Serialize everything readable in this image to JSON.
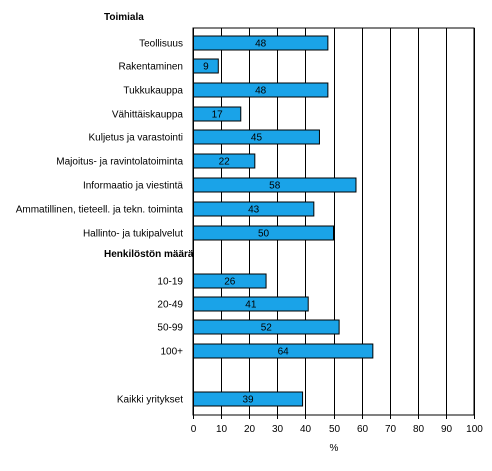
{
  "chart_data": {
    "type": "bar",
    "orientation": "horizontal",
    "xlabel": "%",
    "xlim": [
      0,
      100
    ],
    "xticks": [
      0,
      10,
      20,
      30,
      40,
      50,
      60,
      70,
      80,
      90,
      100
    ],
    "grid": true,
    "bar_color": "#1aa3e8",
    "groups": [
      {
        "heading": "Toimiala",
        "categories": [
          "Teollisuus",
          "Rakentaminen",
          "Tukkukauppa",
          "Vähittäiskauppa",
          "Kuljetus ja varastointi",
          "Majoitus- ja ravintolatoiminta",
          "Informaatio ja viestintä",
          "Ammatillinen, tieteell. ja tekn. toiminta",
          "Hallinto- ja tukipalvelut"
        ],
        "values": [
          48,
          9,
          48,
          17,
          45,
          22,
          58,
          43,
          50
        ]
      },
      {
        "heading": "Henkilöstön määrä",
        "categories": [
          "10-19",
          "20-49",
          "50-99",
          "100+"
        ],
        "values": [
          26,
          41,
          52,
          64
        ]
      },
      {
        "heading": "",
        "categories": [
          "Kaikki yritykset"
        ],
        "values": [
          39
        ]
      }
    ]
  }
}
